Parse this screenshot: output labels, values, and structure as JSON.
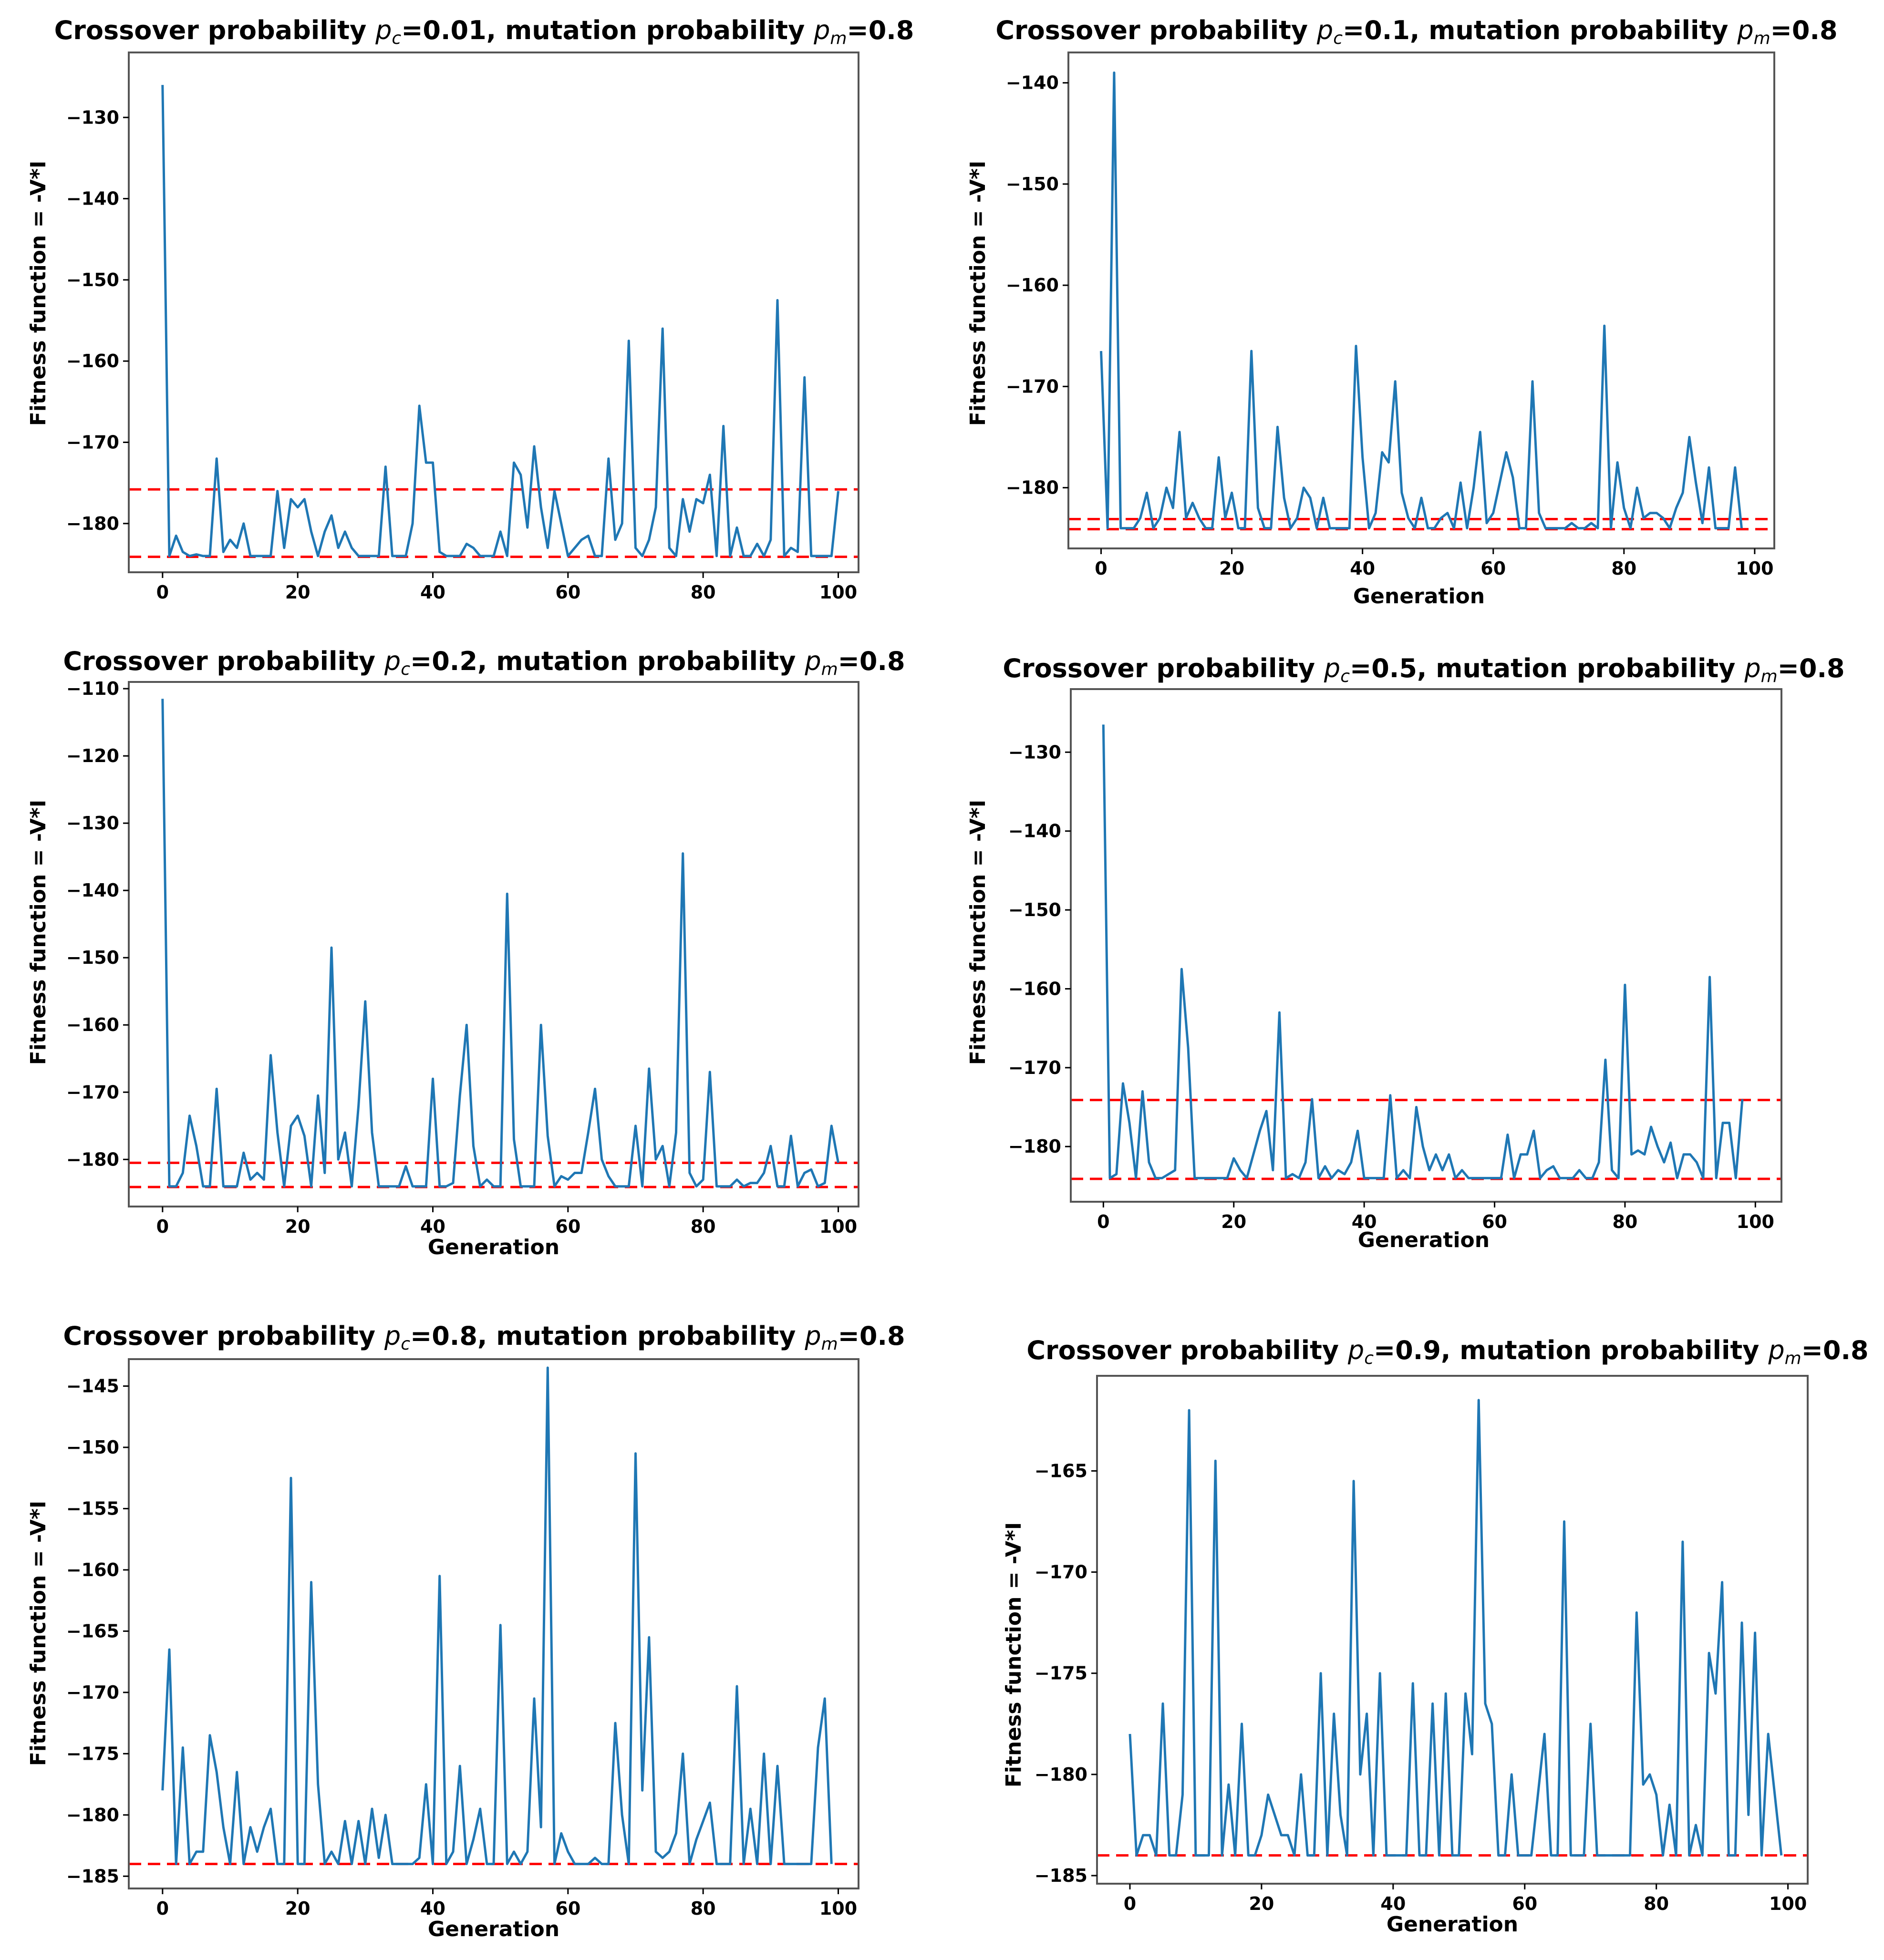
{
  "colors": {
    "series": "#1f77b4",
    "reference": "#ff0000"
  },
  "chart_data": [
    {
      "type": "line",
      "title_prefix": "Crossover probability ",
      "pc_symbol": "p",
      "pc_sub": "c",
      "pc_value": "=0.01",
      "title_mid": ", mutation probability ",
      "pm_symbol": "p",
      "pm_sub": "m",
      "pm_value": "=0.8",
      "xlabel": "",
      "ylabel": "Fitness function = -V*I",
      "xlim": [
        -5,
        103
      ],
      "ylim": [
        -186,
        -122
      ],
      "xticks": [
        0,
        20,
        40,
        60,
        80,
        100
      ],
      "yticks": [
        -180,
        -170,
        -160,
        -150,
        -140,
        -130
      ],
      "ytick_labels": [
        "−180",
        "−170",
        "−160",
        "−150",
        "−140",
        "−130"
      ],
      "hlines": [
        -175.8,
        -184.1
      ],
      "y": [
        -126,
        -184,
        -181.5,
        -183.5,
        -184,
        -183.8,
        -184,
        -184,
        -172,
        -183.5,
        -182,
        -183,
        -180,
        -184,
        -184,
        -184,
        -184,
        -176,
        -183,
        -177,
        -178,
        -177,
        -181,
        -184,
        -181,
        -179,
        -183,
        -181,
        -183,
        -184,
        -184,
        -184,
        -184,
        -173,
        -184,
        -184,
        -184,
        -180,
        -165.5,
        -172.5,
        -172.5,
        -183.5,
        -184,
        -184,
        -184,
        -182.5,
        -183,
        -184,
        -184,
        -184,
        -181,
        -184,
        -172.5,
        -174,
        -180.5,
        -170.5,
        -178,
        -183,
        -176,
        -180,
        -184,
        -183,
        -182,
        -181.5,
        -184,
        -184,
        -172,
        -182,
        -180,
        -157.5,
        -183,
        -184,
        -182,
        -178,
        -156,
        -183,
        -184,
        -177,
        -181,
        -177,
        -177.5,
        -174,
        -184,
        -168,
        -184,
        -180.5,
        -184,
        -184,
        -182.5,
        -184,
        -182,
        -152.5,
        -184,
        -183,
        -183.5,
        -162,
        -184,
        -184,
        -184,
        -184,
        -176
      ]
    },
    {
      "type": "line",
      "title_prefix": "Crossover probability ",
      "pc_symbol": "p",
      "pc_sub": "c",
      "pc_value": "=0.1",
      "title_mid": ", mutation probability ",
      "pm_symbol": "p",
      "pm_sub": "m",
      "pm_value": "=0.8",
      "xlabel": "Generation",
      "ylabel": "Fitness function = -V*I",
      "xlim": [
        -5,
        103
      ],
      "ylim": [
        -186,
        -137
      ],
      "xticks": [
        0,
        20,
        40,
        60,
        80,
        100
      ],
      "yticks": [
        -180,
        -170,
        -160,
        -150,
        -140
      ],
      "ytick_labels": [
        "−180",
        "−170",
        "−160",
        "−150",
        "−140"
      ],
      "hlines": [
        -183.1,
        -184.1
      ],
      "y": [
        -166.5,
        -184,
        -139,
        -184,
        -184,
        -184,
        -183,
        -180.5,
        -184,
        -183,
        -180,
        -182,
        -174.5,
        -183,
        -181.5,
        -183,
        -184,
        -184,
        -177,
        -183,
        -180.5,
        -184,
        -184,
        -166.5,
        -182,
        -184,
        -184,
        -174,
        -181,
        -184,
        -183,
        -180,
        -181,
        -184,
        -181,
        -184,
        -184,
        -184,
        -184,
        -166,
        -177,
        -184,
        -182.5,
        -176.5,
        -177.5,
        -169.5,
        -180.5,
        -183,
        -184,
        -181,
        -184,
        -184,
        -183,
        -182.5,
        -184,
        -179.5,
        -184,
        -180,
        -174.5,
        -183.5,
        -182.5,
        -179.5,
        -176.5,
        -179,
        -184,
        -184,
        -169.5,
        -182.5,
        -184,
        -184,
        -184,
        -184,
        -183.5,
        -184,
        -184,
        -183.5,
        -184,
        -164,
        -184,
        -177.5,
        -182,
        -184,
        -180,
        -183,
        -182.5,
        -182.5,
        -183,
        -184,
        -182,
        -180.5,
        -175,
        -179.5,
        -183.5,
        -178,
        -184,
        -184,
        -184,
        -178,
        -184
      ]
    },
    {
      "type": "line",
      "title_prefix": "Crossover probability ",
      "pc_symbol": "p",
      "pc_sub": "c",
      "pc_value": "=0.2",
      "title_mid": ", mutation probability ",
      "pm_symbol": "p",
      "pm_sub": "m",
      "pm_value": "=0.8",
      "xlabel": "Generation",
      "ylabel": "Fitness function = -V*I",
      "xlim": [
        -5,
        103
      ],
      "ylim": [
        -187,
        -109
      ],
      "xticks": [
        0,
        20,
        40,
        60,
        80,
        100
      ],
      "yticks": [
        -180,
        -170,
        -160,
        -150,
        -140,
        -130,
        -120,
        -110
      ],
      "ytick_labels": [
        "−180",
        "−170",
        "−160",
        "−150",
        "−140",
        "−130",
        "−120",
        "−110"
      ],
      "hlines": [
        -180.5,
        -184.1
      ],
      "y": [
        -111.5,
        -184,
        -184,
        -182,
        -173.5,
        -178,
        -184,
        -184,
        -169.5,
        -184,
        -184,
        -184,
        -179,
        -183,
        -182,
        -183,
        -164.5,
        -176,
        -184,
        -175,
        -173.5,
        -176.5,
        -184,
        -170.5,
        -182,
        -148.5,
        -180,
        -176,
        -184,
        -172,
        -156.5,
        -176,
        -184,
        -184,
        -184,
        -184,
        -181,
        -184,
        -184,
        -184,
        -168,
        -184,
        -184,
        -183.5,
        -170.5,
        -160,
        -178,
        -184,
        -183,
        -184,
        -184,
        -140.5,
        -177,
        -184,
        -184,
        -184,
        -160,
        -176.5,
        -184,
        -182.5,
        -183,
        -182,
        -182,
        -176,
        -169.5,
        -180,
        -182.5,
        -184,
        -184,
        -184,
        -175,
        -184,
        -166.5,
        -180,
        -178,
        -184,
        -176,
        -134.5,
        -182,
        -184,
        -183,
        -167,
        -184,
        -184,
        -184,
        -183,
        -184,
        -183.5,
        -183.5,
        -182,
        -178,
        -184,
        -184,
        -176.5,
        -184,
        -182,
        -181.5,
        -184,
        -183.5,
        -175,
        -180.5
      ]
    },
    {
      "type": "line",
      "title_prefix": "Crossover probability ",
      "pc_symbol": "p",
      "pc_sub": "c",
      "pc_value": "=0.5",
      "title_mid": ", mutation probability ",
      "pm_symbol": "p",
      "pm_sub": "m",
      "pm_value": "=0.8",
      "xlabel": "Generation",
      "ylabel": "Fitness function = -V*I",
      "xlim": [
        -5,
        104
      ],
      "ylim": [
        -187,
        -122
      ],
      "xticks": [
        0,
        20,
        40,
        60,
        80,
        100
      ],
      "yticks": [
        -180,
        -170,
        -160,
        -150,
        -140,
        -130
      ],
      "ytick_labels": [
        "−180",
        "−170",
        "−160",
        "−150",
        "−140",
        "−130"
      ],
      "hlines": [
        -174.1,
        -184.1
      ],
      "y": [
        -126.5,
        -184,
        -183.5,
        -172,
        -177,
        -184,
        -173,
        -182,
        -184,
        -184,
        -183.5,
        -183,
        -157.5,
        -167.5,
        -184,
        -184,
        -184,
        -184,
        -184,
        -184,
        -181.5,
        -183,
        -184,
        -181,
        -178,
        -175.5,
        -183,
        -163,
        -184,
        -183.5,
        -184,
        -182,
        -174,
        -184,
        -182.5,
        -184,
        -183,
        -183.5,
        -182,
        -178,
        -184,
        -184,
        -184,
        -184,
        -173.5,
        -184,
        -183,
        -184,
        -175,
        -180,
        -183,
        -181,
        -183,
        -181,
        -184,
        -183,
        -184,
        -184,
        -184,
        -184,
        -184,
        -184,
        -178.5,
        -184,
        -181,
        -181,
        -178,
        -184,
        -183,
        -182.5,
        -184,
        -184,
        -184,
        -183,
        -184,
        -184,
        -182,
        -169,
        -183,
        -184,
        -159.5,
        -181,
        -180.5,
        -181,
        -177.5,
        -180,
        -182,
        -179.5,
        -184,
        -181,
        -181,
        -182,
        -184,
        -158.5,
        -184,
        -177,
        -177,
        -184,
        -174
      ]
    },
    {
      "type": "line",
      "title_prefix": "Crossover probability ",
      "pc_symbol": "p",
      "pc_sub": "c",
      "pc_value": "=0.8",
      "title_mid": ", mutation probability ",
      "pm_symbol": "p",
      "pm_sub": "m",
      "pm_value": "=0.8",
      "xlabel": "Generation",
      "ylabel": "Fitness function = -V*I",
      "xlim": [
        -5,
        103
      ],
      "ylim": [
        -186,
        -142.8
      ],
      "xticks": [
        0,
        20,
        40,
        60,
        80,
        100
      ],
      "yticks": [
        -185,
        -180,
        -175,
        -170,
        -165,
        -160,
        -155,
        -150,
        -145
      ],
      "ytick_labels": [
        "−185",
        "−180",
        "−175",
        "−170",
        "−165",
        "−160",
        "−155",
        "−150",
        "−145"
      ],
      "hlines": [
        -184
      ],
      "y": [
        -178,
        -166.5,
        -184,
        -174.5,
        -184,
        -183,
        -183,
        -173.5,
        -176.5,
        -181,
        -184,
        -176.5,
        -184,
        -181,
        -183,
        -181,
        -179.5,
        -184,
        -184,
        -152.5,
        -184,
        -184,
        -161,
        -177.5,
        -184,
        -183,
        -184,
        -180.5,
        -184,
        -180.5,
        -184,
        -179.5,
        -183.5,
        -180,
        -184,
        -184,
        -184,
        -184,
        -183.5,
        -177.5,
        -184,
        -160.5,
        -184,
        -183,
        -176,
        -184,
        -182,
        -179.5,
        -184,
        -184,
        -164.5,
        -184,
        -183,
        -184,
        -183,
        -170.5,
        -181,
        -143.5,
        -184,
        -181.5,
        -183,
        -184,
        -184,
        -184,
        -183.5,
        -184,
        -184,
        -172.5,
        -180,
        -184,
        -150.5,
        -178,
        -165.5,
        -183,
        -183.5,
        -183,
        -181.5,
        -175,
        -184,
        -182,
        -180.5,
        -179,
        -184,
        -184,
        -184,
        -169.5,
        -184,
        -179.5,
        -184,
        -175,
        -184,
        -176,
        -184,
        -184,
        -184,
        -184,
        -184,
        -174.5,
        -170.5,
        -184
      ]
    },
    {
      "type": "line",
      "title_prefix": "Crossover probability ",
      "pc_symbol": "p",
      "pc_sub": "c",
      "pc_value": "=0.9",
      "title_mid": ", mutation probability ",
      "pm_symbol": "p",
      "pm_sub": "m",
      "pm_value": "=0.8",
      "xlabel": "Generation",
      "ylabel": "Fitness function = -V*I",
      "xlim": [
        -5,
        103
      ],
      "ylim": [
        -185.4,
        -160.3
      ],
      "xticks": [
        0,
        20,
        40,
        60,
        80,
        100
      ],
      "yticks": [
        -185,
        -180,
        -175,
        -170,
        -165
      ],
      "ytick_labels": [
        "−185",
        "−180",
        "−175",
        "−170",
        "−165"
      ],
      "hlines": [
        -184
      ],
      "y": [
        -178,
        -184,
        -183,
        -183,
        -184,
        -176.5,
        -184,
        -184,
        -181,
        -162,
        -184,
        -184,
        -184,
        -164.5,
        -184,
        -180.5,
        -184,
        -177.5,
        -184,
        -184,
        -183,
        -181,
        -182,
        -183,
        -183,
        -184,
        -180,
        -184,
        -184,
        -175,
        -184,
        -177,
        -182,
        -184,
        -165.5,
        -180,
        -177,
        -184,
        -175,
        -184,
        -184,
        -184,
        -184,
        -175.5,
        -184,
        -184,
        -176.5,
        -184,
        -176,
        -184,
        -184,
        -176,
        -179,
        -161.5,
        -176.5,
        -177.5,
        -184,
        -184,
        -180,
        -184,
        -184,
        -184,
        -181,
        -178,
        -184,
        -184,
        -167.5,
        -184,
        -184,
        -184,
        -177.5,
        -184,
        -184,
        -184,
        -184,
        -184,
        -184,
        -172,
        -180.5,
        -180,
        -181,
        -184,
        -181.5,
        -184,
        -168.5,
        -184,
        -182.5,
        -184,
        -174,
        -176,
        -170.5,
        -184,
        -184,
        -172.5,
        -182,
        -173,
        -184,
        -178,
        -181,
        -184
      ]
    }
  ]
}
